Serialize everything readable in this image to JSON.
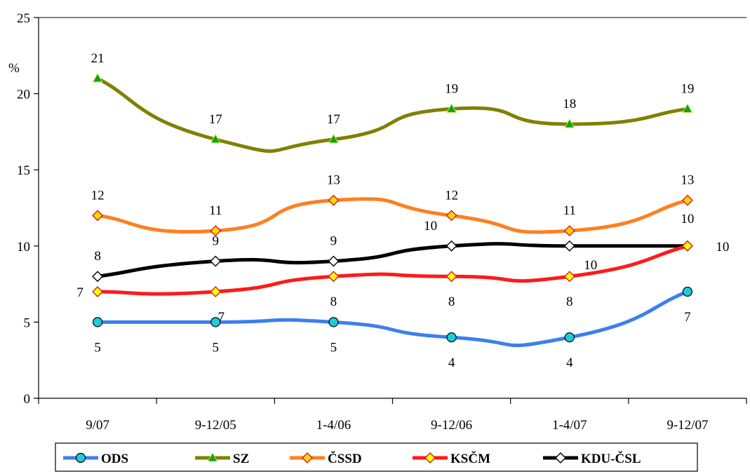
{
  "chart_data": {
    "type": "line",
    "categories": [
      "9/07",
      "9-12/05",
      "1-4/06",
      "9-12/06",
      "1-4/07",
      "9-12/07"
    ],
    "ylabel": "%",
    "ylim": [
      0,
      25
    ],
    "yticks": [
      0,
      5,
      10,
      15,
      20,
      25
    ],
    "grid": false,
    "legend_position": "bottom",
    "series": [
      {
        "name": "ODS",
        "color": "#3b7ff0",
        "marker": "circle",
        "marker_fill": "#1ecbd6",
        "values": [
          5,
          5,
          5,
          4,
          4,
          7
        ],
        "labels": [
          "5",
          "5",
          "5",
          "4",
          "4",
          "7"
        ]
      },
      {
        "name": "SZ",
        "color": "#808000",
        "marker": "triangle",
        "marker_fill": "#11a111",
        "values": [
          21,
          17,
          17,
          19,
          18,
          19
        ],
        "labels": [
          "21",
          "17",
          "17",
          "19",
          "18",
          "19"
        ]
      },
      {
        "name": "ČSSD",
        "color": "#ff7f1f",
        "marker": "diamond",
        "marker_fill": "#ffd700",
        "values": [
          12,
          11,
          13,
          12,
          11,
          13
        ],
        "labels": [
          "12",
          "11",
          "13",
          "12",
          "11",
          "13"
        ]
      },
      {
        "name": "KSČM",
        "color": "#ff1a1a",
        "marker": "diamond",
        "marker_fill": "#ffff00",
        "values": [
          7,
          7,
          8,
          8,
          8,
          10
        ],
        "labels": [
          "7",
          "7",
          "8",
          "8",
          "8",
          "10"
        ]
      },
      {
        "name": "KDU-ČSL",
        "color": "#000000",
        "marker": "diamond",
        "marker_fill": "#ffffff",
        "values": [
          8,
          9,
          9,
          10,
          10,
          10
        ],
        "labels": [
          "8",
          "9",
          "9",
          "10",
          "10",
          "10"
        ]
      }
    ]
  }
}
